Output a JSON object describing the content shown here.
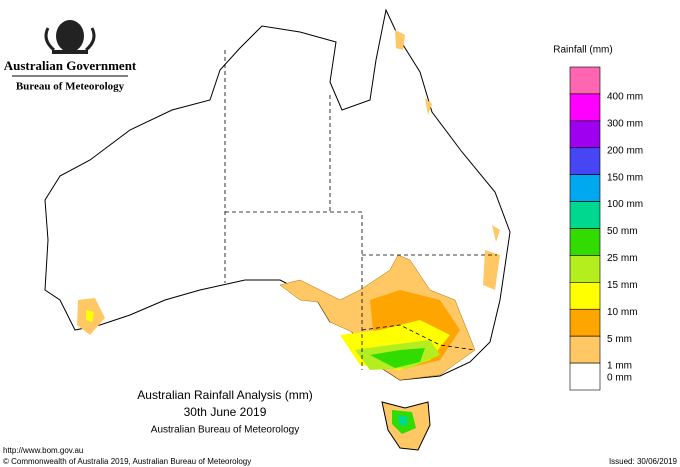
{
  "header": {
    "agency": "Australian Government",
    "bureau": "Bureau of Meteorology"
  },
  "legend": {
    "title": "Rainfall (mm)",
    "items": [
      {
        "color": "#ff66b2",
        "label": null
      },
      {
        "color": "#ff00ff",
        "label": "400 mm"
      },
      {
        "color": "#a000f0",
        "label": "300 mm"
      },
      {
        "color": "#4646f5",
        "label": "200 mm"
      },
      {
        "color": "#00a8f0",
        "label": "150 mm"
      },
      {
        "color": "#00d890",
        "label": "100 mm"
      },
      {
        "color": "#32dc00",
        "label": "50 mm"
      },
      {
        "color": "#b4ee1e",
        "label": "25 mm"
      },
      {
        "color": "#ffff00",
        "label": "15 mm"
      },
      {
        "color": "#ffa500",
        "label": "10 mm"
      },
      {
        "color": "#ffc864",
        "label": "5 mm"
      },
      {
        "color": "#ffffff",
        "label": "1 mm"
      }
    ],
    "bottom_label": "0 mm"
  },
  "map_title": {
    "line1": "Australian Rainfall Analysis (mm)",
    "line2": "30th June 2019",
    "line3": "Australian Bureau of Meteorology"
  },
  "footer": {
    "url": "http://www.bom.gov.au",
    "copyright": "© Commonwealth of Australia 2019, Australian Bureau of Meteorology",
    "issued": "Issued: 30/06/2019"
  }
}
